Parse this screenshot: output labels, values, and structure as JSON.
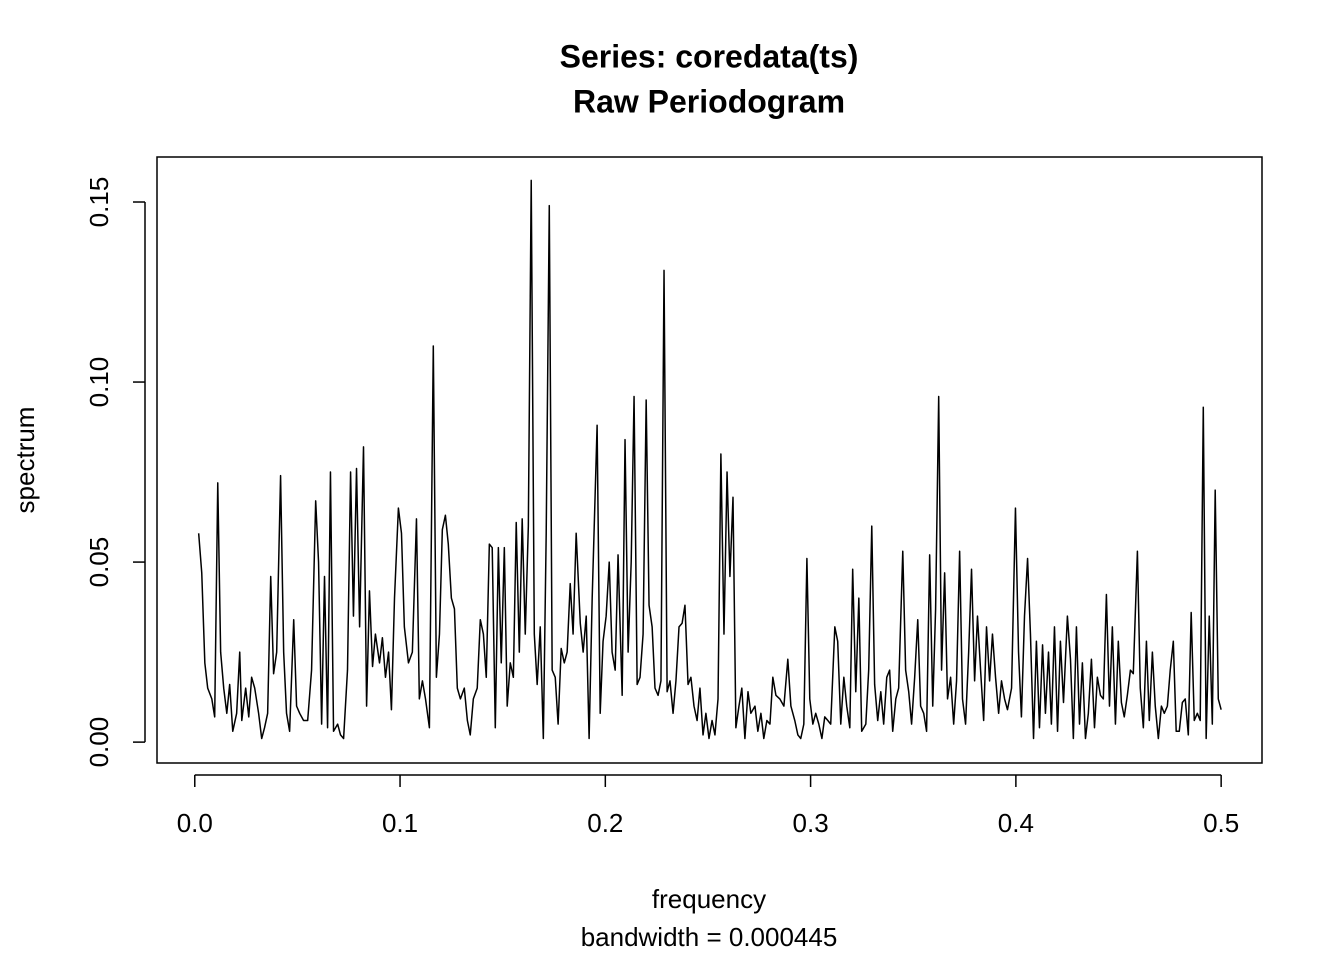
{
  "chart_data": {
    "type": "line",
    "title": "Series: coredata(ts)",
    "subtitle": "Raw Periodogram",
    "x_label": "frequency",
    "x_sublabel": "bandwidth = 0.000445",
    "y_label": "spectrum",
    "color": "#000000",
    "xlim": [
      -0.0184,
      0.5199
    ],
    "ylim": [
      -0.0058,
      0.1625
    ],
    "xticks": [
      {
        "value": 0,
        "label": "0.0"
      },
      0.1,
      0.2,
      0.3,
      0.4,
      0.5
    ],
    "yticks": [
      {
        "value": 0,
        "label": "0.00"
      },
      0.05,
      {
        "value": 0.1,
        "label": "0.10"
      },
      0.15
    ],
    "x": [
      0.0019,
      0.0034,
      0.0049,
      0.0063,
      0.0083,
      0.0097,
      0.0112,
      0.0126,
      0.0141,
      0.0156,
      0.017,
      0.0185,
      0.0204,
      0.0219,
      0.0229,
      0.0248,
      0.0263,
      0.0277,
      0.0292,
      0.0311,
      0.0326,
      0.034,
      0.0355,
      0.037,
      0.0384,
      0.0399,
      0.0418,
      0.0433,
      0.0447,
      0.0462,
      0.0482,
      0.0496,
      0.0511,
      0.053,
      0.055,
      0.0569,
      0.0589,
      0.0603,
      0.0618,
      0.0632,
      0.0647,
      0.0661,
      0.0676,
      0.0696,
      0.071,
      0.0725,
      0.0744,
      0.0759,
      0.0773,
      0.0788,
      0.0803,
      0.0822,
      0.0837,
      0.0851,
      0.0866,
      0.088,
      0.09,
      0.0914,
      0.0929,
      0.0944,
      0.0958,
      0.0973,
      0.0992,
      0.1007,
      0.1021,
      0.1041,
      0.106,
      0.108,
      0.1094,
      0.1109,
      0.1124,
      0.1143,
      0.1162,
      0.1177,
      0.1192,
      0.1206,
      0.1221,
      0.1235,
      0.125,
      0.1265,
      0.1279,
      0.1294,
      0.1313,
      0.1328,
      0.1342,
      0.1357,
      0.1376,
      0.1391,
      0.1406,
      0.142,
      0.1435,
      0.1449,
      0.1464,
      0.1479,
      0.1493,
      0.1508,
      0.1522,
      0.1537,
      0.1552,
      0.1566,
      0.1581,
      0.1595,
      0.161,
      0.1625,
      0.1639,
      0.1654,
      0.1668,
      0.1683,
      0.1698,
      0.1712,
      0.1727,
      0.1741,
      0.1756,
      0.177,
      0.1785,
      0.18,
      0.1814,
      0.1829,
      0.1843,
      0.1858,
      0.1878,
      0.1892,
      0.1907,
      0.1921,
      0.1936,
      0.196,
      0.1975,
      0.1989,
      0.2004,
      0.2019,
      0.2033,
      0.2048,
      0.2062,
      0.2082,
      0.2096,
      0.2111,
      0.2126,
      0.214,
      0.2155,
      0.2169,
      0.2184,
      0.2199,
      0.2213,
      0.2228,
      0.2242,
      0.2257,
      0.2271,
      0.2286,
      0.2301,
      0.2315,
      0.233,
      0.2344,
      0.2359,
      0.2374,
      0.2388,
      0.2403,
      0.2417,
      0.2432,
      0.2447,
      0.2461,
      0.2476,
      0.249,
      0.2505,
      0.252,
      0.2534,
      0.2549,
      0.2563,
      0.2578,
      0.2593,
      0.2607,
      0.2622,
      0.2636,
      0.2651,
      0.2665,
      0.268,
      0.2695,
      0.2709,
      0.2729,
      0.2743,
      0.2758,
      0.2772,
      0.2787,
      0.2802,
      0.2816,
      0.2831,
      0.285,
      0.287,
      0.2889,
      0.2904,
      0.2923,
      0.2938,
      0.2952,
      0.2967,
      0.2982,
      0.2996,
      0.3011,
      0.3025,
      0.304,
      0.3055,
      0.3069,
      0.3084,
      0.3098,
      0.3118,
      0.3132,
      0.3147,
      0.3162,
      0.3176,
      0.3191,
      0.3205,
      0.322,
      0.3235,
      0.3249,
      0.3269,
      0.3283,
      0.3298,
      0.3312,
      0.3327,
      0.3342,
      0.3356,
      0.3371,
      0.3385,
      0.34,
      0.3415,
      0.3429,
      0.3449,
      0.3463,
      0.3478,
      0.3492,
      0.3507,
      0.3522,
      0.3536,
      0.3551,
      0.3565,
      0.358,
      0.3595,
      0.3609,
      0.3624,
      0.3638,
      0.3653,
      0.3667,
      0.3682,
      0.3697,
      0.3711,
      0.3726,
      0.374,
      0.3755,
      0.377,
      0.3784,
      0.3799,
      0.3813,
      0.3828,
      0.3843,
      0.3857,
      0.3872,
      0.3886,
      0.3901,
      0.3916,
      0.393,
      0.3945,
      0.3959,
      0.3979,
      0.3998,
      0.4013,
      0.4027,
      0.4042,
      0.4057,
      0.4071,
      0.4086,
      0.41,
      0.4115,
      0.413,
      0.4144,
      0.4159,
      0.4173,
      0.4188,
      0.4203,
      0.4217,
      0.4232,
      0.4251,
      0.4266,
      0.428,
      0.4295,
      0.431,
      0.4324,
      0.4339,
      0.4353,
      0.4368,
      0.4383,
      0.4397,
      0.4412,
      0.4426,
      0.4441,
      0.4456,
      0.447,
      0.4485,
      0.4499,
      0.4514,
      0.4528,
      0.4543,
      0.4558,
      0.4572,
      0.4592,
      0.4606,
      0.4621,
      0.4636,
      0.465,
      0.4665,
      0.4679,
      0.4694,
      0.4709,
      0.4723,
      0.4738,
      0.4752,
      0.4767,
      0.4781,
      0.4796,
      0.4811,
      0.4825,
      0.484,
      0.4854,
      0.4869,
      0.4884,
      0.4898,
      0.4913,
      0.4927,
      0.4942,
      0.4957,
      0.4971,
      0.4986,
      0.5
    ],
    "values": [
      0.058,
      0.047,
      0.022,
      0.015,
      0.012,
      0.007,
      0.072,
      0.025,
      0.015,
      0.008,
      0.016,
      0.003,
      0.008,
      0.025,
      0.006,
      0.015,
      0.007,
      0.018,
      0.015,
      0.008,
      0.001,
      0.004,
      0.008,
      0.046,
      0.019,
      0.025,
      0.074,
      0.025,
      0.008,
      0.003,
      0.034,
      0.01,
      0.008,
      0.006,
      0.006,
      0.02,
      0.067,
      0.05,
      0.005,
      0.046,
      0.004,
      0.075,
      0.003,
      0.005,
      0.002,
      0.001,
      0.02,
      0.075,
      0.035,
      0.076,
      0.032,
      0.082,
      0.01,
      0.042,
      0.021,
      0.03,
      0.022,
      0.029,
      0.018,
      0.025,
      0.009,
      0.04,
      0.065,
      0.058,
      0.032,
      0.022,
      0.025,
      0.062,
      0.012,
      0.017,
      0.012,
      0.004,
      0.11,
      0.018,
      0.03,
      0.059,
      0.063,
      0.055,
      0.04,
      0.037,
      0.015,
      0.012,
      0.015,
      0.006,
      0.002,
      0.012,
      0.015,
      0.034,
      0.03,
      0.018,
      0.055,
      0.054,
      0.004,
      0.054,
      0.022,
      0.054,
      0.01,
      0.022,
      0.018,
      0.061,
      0.025,
      0.062,
      0.03,
      0.06,
      0.156,
      0.03,
      0.016,
      0.032,
      0.001,
      0.058,
      0.149,
      0.02,
      0.018,
      0.005,
      0.026,
      0.022,
      0.025,
      0.044,
      0.03,
      0.058,
      0.033,
      0.025,
      0.035,
      0.001,
      0.04,
      0.088,
      0.008,
      0.028,
      0.035,
      0.05,
      0.025,
      0.02,
      0.052,
      0.013,
      0.084,
      0.025,
      0.05,
      0.096,
      0.016,
      0.018,
      0.03,
      0.095,
      0.038,
      0.032,
      0.015,
      0.013,
      0.017,
      0.131,
      0.014,
      0.017,
      0.008,
      0.017,
      0.032,
      0.033,
      0.038,
      0.016,
      0.018,
      0.01,
      0.006,
      0.015,
      0.002,
      0.008,
      0.001,
      0.006,
      0.002,
      0.012,
      0.08,
      0.03,
      0.075,
      0.046,
      0.068,
      0.004,
      0.01,
      0.015,
      0.001,
      0.014,
      0.008,
      0.01,
      0.003,
      0.008,
      0.001,
      0.006,
      0.005,
      0.018,
      0.013,
      0.012,
      0.01,
      0.023,
      0.01,
      0.006,
      0.002,
      0.001,
      0.005,
      0.051,
      0.012,
      0.005,
      0.008,
      0.005,
      0.001,
      0.007,
      0.006,
      0.005,
      0.032,
      0.028,
      0.005,
      0.018,
      0.01,
      0.004,
      0.048,
      0.014,
      0.04,
      0.003,
      0.005,
      0.02,
      0.06,
      0.016,
      0.006,
      0.014,
      0.005,
      0.018,
      0.02,
      0.003,
      0.012,
      0.015,
      0.053,
      0.02,
      0.014,
      0.005,
      0.018,
      0.034,
      0.01,
      0.008,
      0.003,
      0.052,
      0.01,
      0.037,
      0.096,
      0.02,
      0.047,
      0.012,
      0.018,
      0.005,
      0.017,
      0.053,
      0.012,
      0.005,
      0.025,
      0.048,
      0.017,
      0.035,
      0.02,
      0.006,
      0.032,
      0.017,
      0.03,
      0.018,
      0.008,
      0.017,
      0.012,
      0.009,
      0.015,
      0.065,
      0.025,
      0.007,
      0.035,
      0.051,
      0.03,
      0.001,
      0.028,
      0.004,
      0.027,
      0.008,
      0.025,
      0.005,
      0.032,
      0.003,
      0.028,
      0.011,
      0.035,
      0.023,
      0.001,
      0.032,
      0.005,
      0.022,
      0.001,
      0.008,
      0.023,
      0.004,
      0.018,
      0.013,
      0.012,
      0.041,
      0.01,
      0.032,
      0.005,
      0.028,
      0.011,
      0.007,
      0.013,
      0.02,
      0.019,
      0.053,
      0.015,
      0.004,
      0.028,
      0.006,
      0.025,
      0.01,
      0.001,
      0.01,
      0.008,
      0.01,
      0.02,
      0.028,
      0.003,
      0.003,
      0.011,
      0.012,
      0.002,
      0.036,
      0.006,
      0.008,
      0.006,
      0.093,
      0.001,
      0.035,
      0.005,
      0.07,
      0.012,
      0.009
    ]
  }
}
